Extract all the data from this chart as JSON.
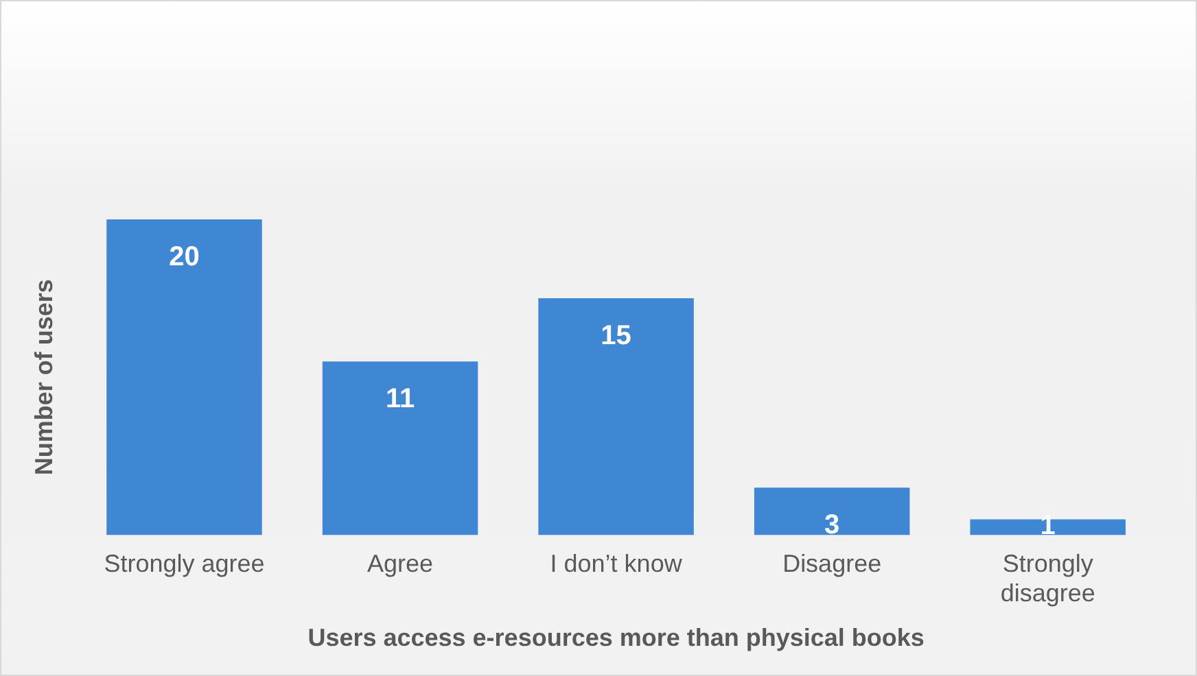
{
  "chart_data": {
    "type": "bar",
    "xlabel": "Users access e-resources more than physical books",
    "ylabel": "Number of users",
    "categories": [
      "Strongly agree",
      "Agree",
      "I don’t know",
      "Disagree",
      "Strongly disagree"
    ],
    "values": [
      20,
      11,
      15,
      3,
      1
    ],
    "color": "#3f87d2",
    "data_labels": true,
    "grid": false,
    "legend": false,
    "tick_labels": "x"
  }
}
